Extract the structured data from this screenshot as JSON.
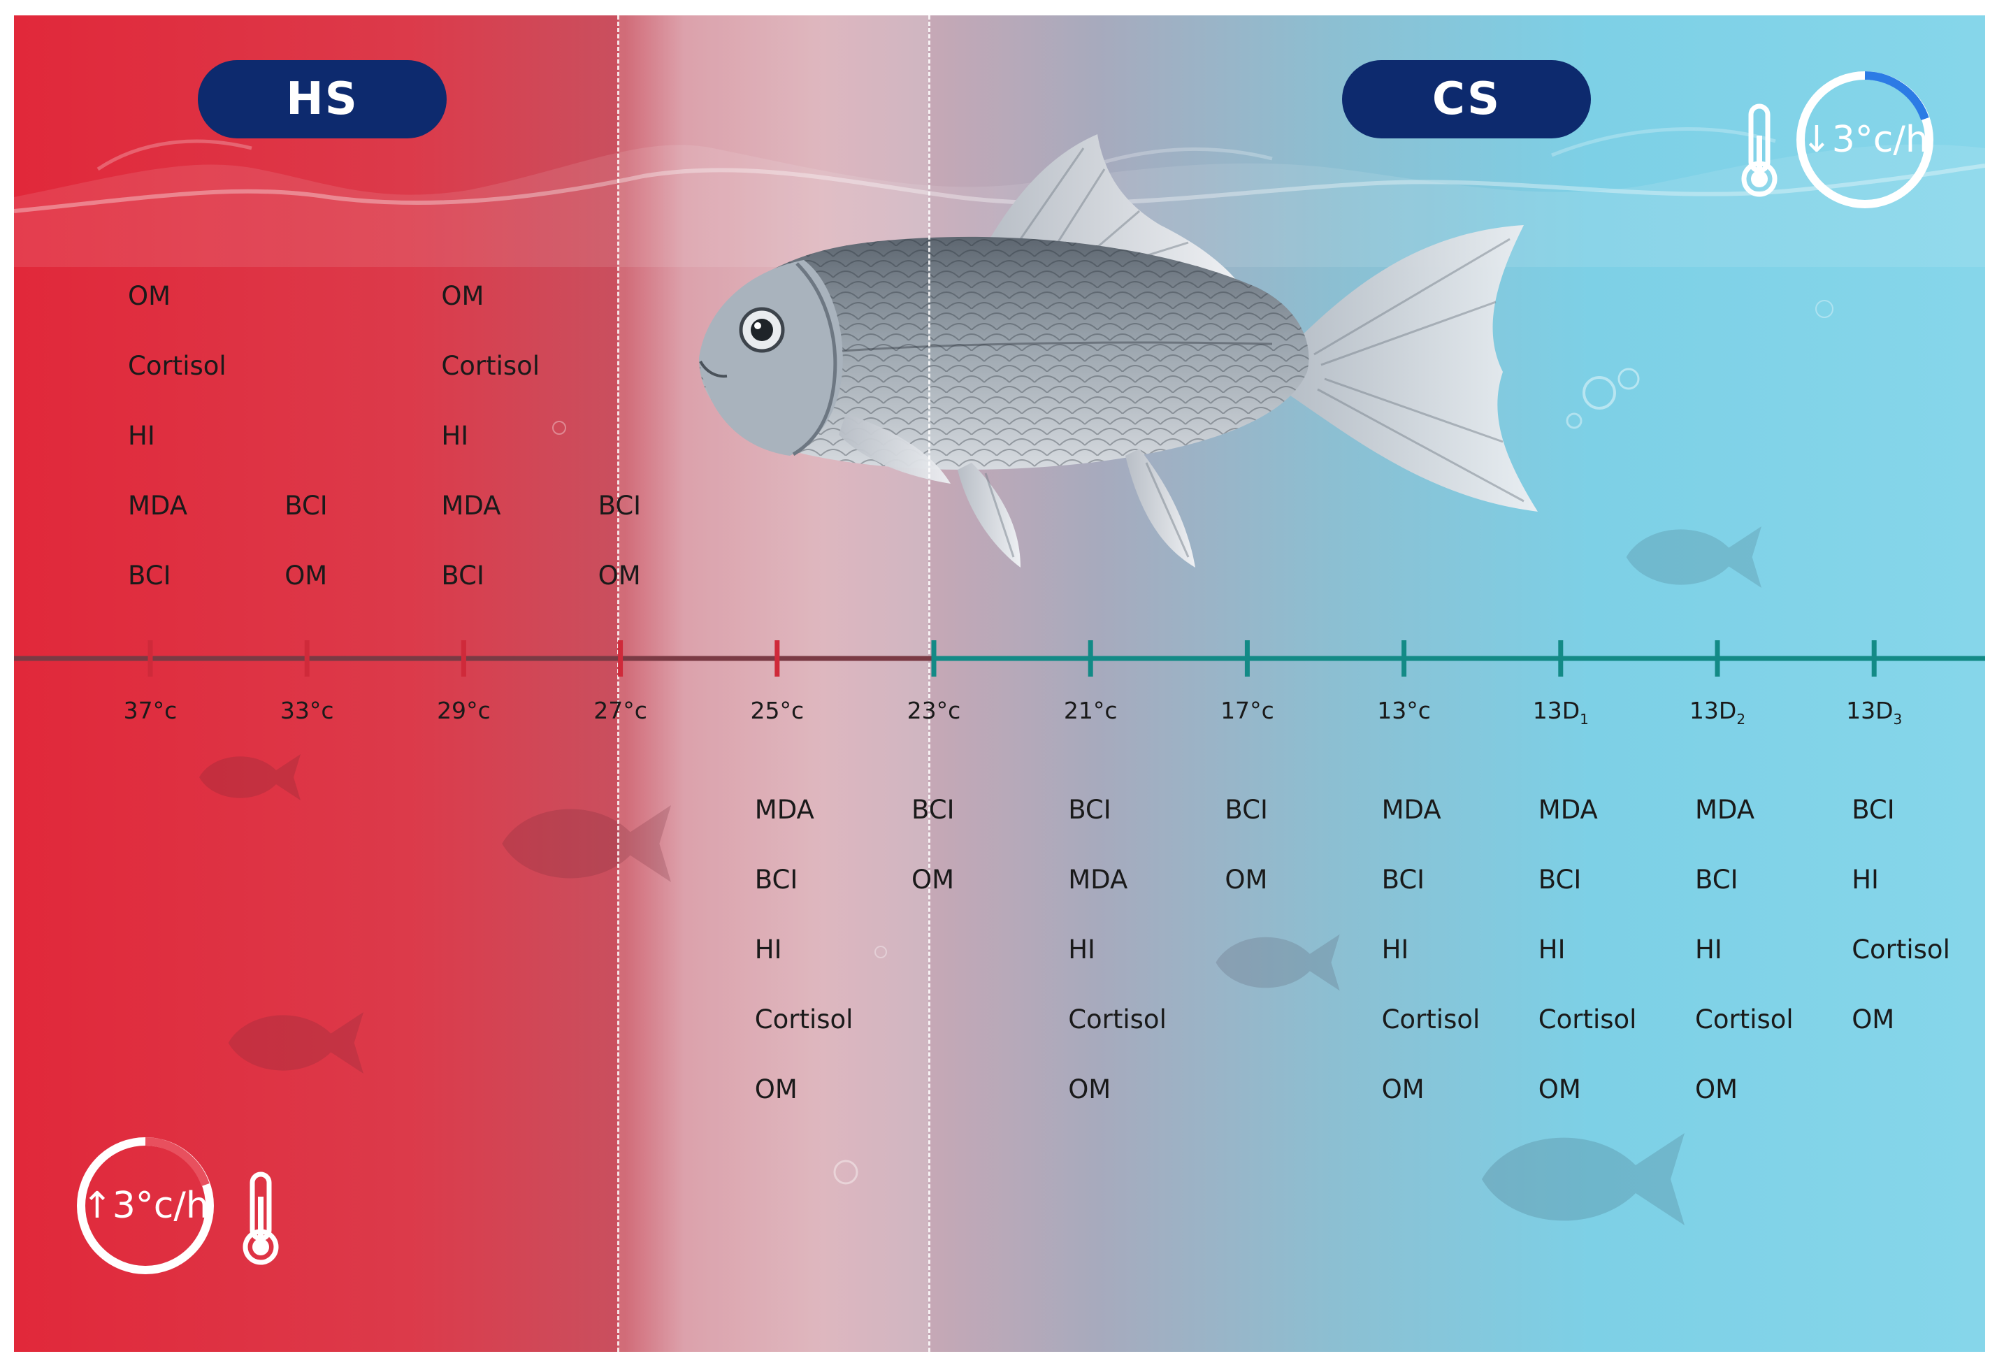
{
  "panels": {
    "heat_stress": {
      "badge": "HS",
      "rate_label": "↑3°c/h",
      "rate_icon": "arrow-up-icon",
      "color": "#e1283a"
    },
    "cold_stress": {
      "badge": "CS",
      "rate_label": "↓3°c/h",
      "rate_icon": "arrow-down-icon",
      "color": "#7dd0e6"
    }
  },
  "colors": {
    "badge": "#0d2a6e",
    "heat_tick": "#cf2a3a",
    "cold_tick": "#138a86",
    "axis_heat": "#7a3a44",
    "axis_cold": "#138a86"
  },
  "timeline": [
    {
      "label": "37°c",
      "base": "37",
      "unit": "°c",
      "sub": "",
      "phase": "heat",
      "above": [
        "OM",
        "Cortisol",
        "HI",
        "MDA",
        "BCI"
      ],
      "below": []
    },
    {
      "label": "33°c",
      "base": "33",
      "unit": "°c",
      "sub": "",
      "phase": "heat",
      "above": [
        "BCI",
        "OM"
      ],
      "below": []
    },
    {
      "label": "29°c",
      "base": "29",
      "unit": "°c",
      "sub": "",
      "phase": "heat",
      "above": [
        "OM",
        "Cortisol",
        "HI",
        "MDA",
        "BCI"
      ],
      "below": []
    },
    {
      "label": "27°c",
      "base": "27",
      "unit": "°c",
      "sub": "",
      "phase": "heat",
      "above": [
        "BCI",
        "OM"
      ],
      "below": []
    },
    {
      "label": "25°c",
      "base": "25",
      "unit": "°c",
      "sub": "",
      "phase": "heat",
      "above": [],
      "below": [
        "MDA",
        "BCI",
        "HI",
        "Cortisol",
        "OM"
      ]
    },
    {
      "label": "23°c",
      "base": "23",
      "unit": "°c",
      "sub": "",
      "phase": "cold",
      "above": [],
      "below": [
        "BCI",
        "OM"
      ]
    },
    {
      "label": "21°c",
      "base": "21",
      "unit": "°c",
      "sub": "",
      "phase": "cold",
      "above": [],
      "below": [
        "BCI",
        "MDA",
        "HI",
        "Cortisol",
        "OM"
      ]
    },
    {
      "label": "17°c",
      "base": "17",
      "unit": "°c",
      "sub": "",
      "phase": "cold",
      "above": [],
      "below": [
        "BCI",
        "OM"
      ]
    },
    {
      "label": "13°c",
      "base": "13",
      "unit": "°c",
      "sub": "",
      "phase": "cold",
      "above": [],
      "below": [
        "MDA",
        "BCI",
        "HI",
        "Cortisol",
        "OM"
      ]
    },
    {
      "label": "13D1",
      "base": "13D",
      "unit": "",
      "sub": "1",
      "phase": "cold",
      "above": [],
      "below": [
        "MDA",
        "BCI",
        "HI",
        "Cortisol",
        "OM"
      ]
    },
    {
      "label": "13D2",
      "base": "13D",
      "unit": "",
      "sub": "2",
      "phase": "cold",
      "above": [],
      "below": [
        "MDA",
        "BCI",
        "HI",
        "Cortisol",
        "OM"
      ]
    },
    {
      "label": "13D3",
      "base": "13D",
      "unit": "",
      "sub": "3",
      "phase": "cold",
      "above": [],
      "below": [
        "BCI",
        "HI",
        "Cortisol",
        "OM"
      ]
    }
  ],
  "icons": [
    "thermometer-icon",
    "fish-illustration",
    "fish-silhouette-icon"
  ]
}
